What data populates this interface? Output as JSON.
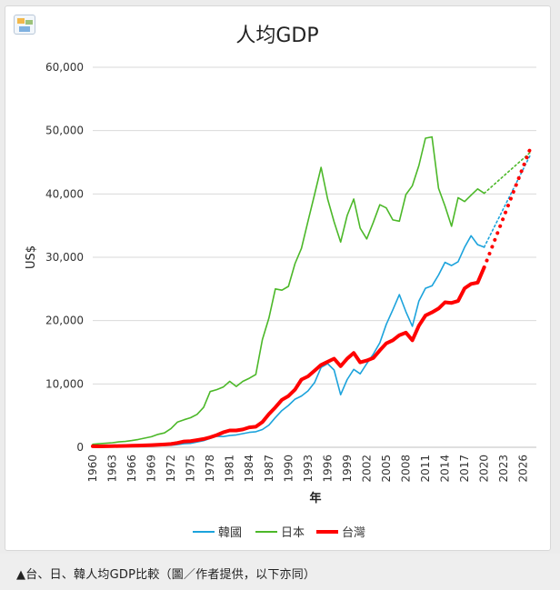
{
  "caption": "▲台、日、韓人均GDP比較（圖／作者提供，以下亦同）",
  "chart_data": {
    "type": "line",
    "title": "人均GDP",
    "xlabel": "年",
    "ylabel": "US$",
    "ylim": [
      0,
      60000
    ],
    "xlim": [
      1960,
      2028
    ],
    "y_ticks": [
      "0",
      "10,000",
      "20,000",
      "30,000",
      "40,000",
      "50,000",
      "60,000"
    ],
    "x_ticks": [
      "1960",
      "1963",
      "1966",
      "1969",
      "1972",
      "1975",
      "1978",
      "1981",
      "1984",
      "1987",
      "1990",
      "1993",
      "1996",
      "1999",
      "2002",
      "2005",
      "2008",
      "2011",
      "2014",
      "2017",
      "2020",
      "2023",
      "2026"
    ],
    "grid": "horizontal",
    "legend_position": "bottom",
    "x": [
      1960,
      1961,
      1962,
      1963,
      1964,
      1965,
      1966,
      1967,
      1968,
      1969,
      1970,
      1971,
      1972,
      1973,
      1974,
      1975,
      1976,
      1977,
      1978,
      1979,
      1980,
      1981,
      1982,
      1983,
      1984,
      1985,
      1986,
      1987,
      1988,
      1989,
      1990,
      1991,
      1992,
      1993,
      1994,
      1995,
      1996,
      1997,
      1998,
      1999,
      2000,
      2001,
      2002,
      2003,
      2004,
      2005,
      2006,
      2007,
      2008,
      2009,
      2010,
      2011,
      2012,
      2013,
      2014,
      2015,
      2016,
      2017,
      2018,
      2019,
      2020
    ],
    "series": [
      {
        "name": "韓國",
        "color": "#1ca3dc",
        "values": [
          160,
          100,
          110,
          140,
          120,
          110,
          130,
          160,
          200,
          250,
          280,
          300,
          320,
          410,
          560,
          620,
          830,
          1050,
          1400,
          1740,
          1700,
          1850,
          1950,
          2150,
          2350,
          2460,
          2800,
          3500,
          4700,
          5800,
          6600,
          7600,
          8100,
          8900,
          10200,
          12600,
          13200,
          12200,
          8300,
          10700,
          12300,
          11600,
          13200,
          14700,
          16500,
          19400,
          21700,
          24100,
          21400,
          19100,
          23100,
          25100,
          25500,
          27200,
          29200,
          28700,
          29300,
          31600,
          33400,
          32000,
          31600
        ],
        "projection": [
          [
            2020,
            31600
          ],
          [
            2027,
            46000
          ]
        ]
      },
      {
        "name": "日本",
        "color": "#4cb829",
        "values": [
          480,
          560,
          630,
          720,
          840,
          920,
          1060,
          1230,
          1450,
          1670,
          2040,
          2270,
          2950,
          3990,
          4350,
          4670,
          5200,
          6300,
          8800,
          9100,
          9500,
          10400,
          9600,
          10400,
          10900,
          11500,
          17000,
          20400,
          25000,
          24800,
          25400,
          29000,
          31400,
          35700,
          39900,
          44200,
          39200,
          35600,
          32400,
          36600,
          39200,
          34600,
          32900,
          35500,
          38300,
          37800,
          35900,
          35700,
          39900,
          41300,
          44500,
          48800,
          49000,
          40900,
          38100,
          34900,
          39400,
          38800,
          39800,
          40800,
          40100
        ],
        "projection": [
          [
            2020,
            40100
          ],
          [
            2027,
            46500
          ]
        ]
      },
      {
        "name": "台灣",
        "color": "#ff0000",
        "values": [
          155,
          150,
          160,
          175,
          200,
          220,
          240,
          270,
          300,
          345,
          390,
          445,
          520,
          690,
          920,
          980,
          1140,
          1300,
          1580,
          1920,
          2360,
          2660,
          2650,
          2820,
          3150,
          3250,
          3980,
          5240,
          6300,
          7500,
          8100,
          9100,
          10700,
          11200,
          12100,
          13000,
          13500,
          14000,
          12800,
          14000,
          14900,
          13400,
          13700,
          14100,
          15300,
          16400,
          16900,
          17700,
          18100,
          16900,
          19200,
          20800,
          21300,
          21900,
          22900,
          22800,
          23100,
          25100,
          25800,
          26000,
          28400
        ],
        "projection": [
          [
            2020,
            28400
          ],
          [
            2027,
            47000
          ]
        ]
      }
    ]
  }
}
